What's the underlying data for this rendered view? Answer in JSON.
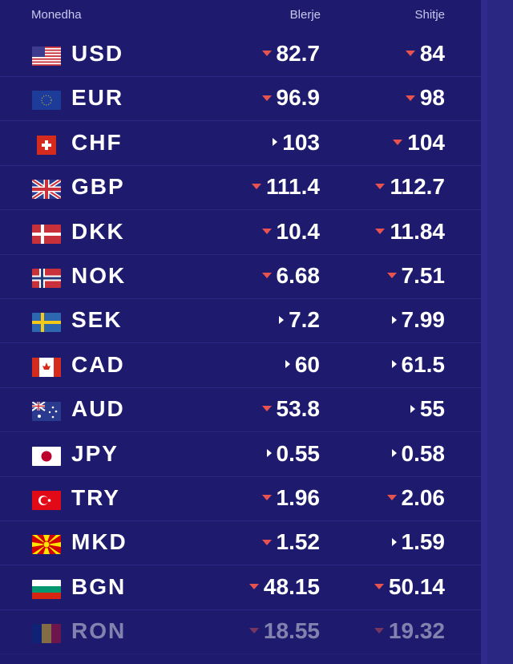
{
  "header": {
    "currency": "Monedha",
    "buy": "Blerje",
    "sell": "Shitje"
  },
  "colors": {
    "background": "#1e1b6e",
    "down_arrow": "#e8534f",
    "neutral_arrow": "#ffffff"
  },
  "rates": [
    {
      "code": "USD",
      "flag": "us-flag-icon",
      "buy": "82.7",
      "buy_trend": "down",
      "sell": "84",
      "sell_trend": "down"
    },
    {
      "code": "EUR",
      "flag": "eu-flag-icon",
      "buy": "96.9",
      "buy_trend": "down",
      "sell": "98",
      "sell_trend": "down"
    },
    {
      "code": "CHF",
      "flag": "ch-flag-icon",
      "buy": "103",
      "buy_trend": "same",
      "sell": "104",
      "sell_trend": "down"
    },
    {
      "code": "GBP",
      "flag": "gb-flag-icon",
      "buy": "111.4",
      "buy_trend": "down",
      "sell": "112.7",
      "sell_trend": "down"
    },
    {
      "code": "DKK",
      "flag": "dk-flag-icon",
      "buy": "10.4",
      "buy_trend": "down",
      "sell": "11.84",
      "sell_trend": "down"
    },
    {
      "code": "NOK",
      "flag": "no-flag-icon",
      "buy": "6.68",
      "buy_trend": "down",
      "sell": "7.51",
      "sell_trend": "down"
    },
    {
      "code": "SEK",
      "flag": "se-flag-icon",
      "buy": "7.2",
      "buy_trend": "same",
      "sell": "7.99",
      "sell_trend": "same"
    },
    {
      "code": "CAD",
      "flag": "ca-flag-icon",
      "buy": "60",
      "buy_trend": "same",
      "sell": "61.5",
      "sell_trend": "same"
    },
    {
      "code": "AUD",
      "flag": "au-flag-icon",
      "buy": "53.8",
      "buy_trend": "down",
      "sell": "55",
      "sell_trend": "same"
    },
    {
      "code": "JPY",
      "flag": "jp-flag-icon",
      "buy": "0.55",
      "buy_trend": "same",
      "sell": "0.58",
      "sell_trend": "same"
    },
    {
      "code": "TRY",
      "flag": "tr-flag-icon",
      "buy": "1.96",
      "buy_trend": "down",
      "sell": "2.06",
      "sell_trend": "down"
    },
    {
      "code": "MKD",
      "flag": "mk-flag-icon",
      "buy": "1.52",
      "buy_trend": "down",
      "sell": "1.59",
      "sell_trend": "same"
    },
    {
      "code": "BGN",
      "flag": "bg-flag-icon",
      "buy": "48.15",
      "buy_trend": "down",
      "sell": "50.14",
      "sell_trend": "down"
    },
    {
      "code": "RON",
      "flag": "ro-flag-icon",
      "buy": "18.55",
      "buy_trend": "down",
      "sell": "19.32",
      "sell_trend": "down"
    }
  ]
}
